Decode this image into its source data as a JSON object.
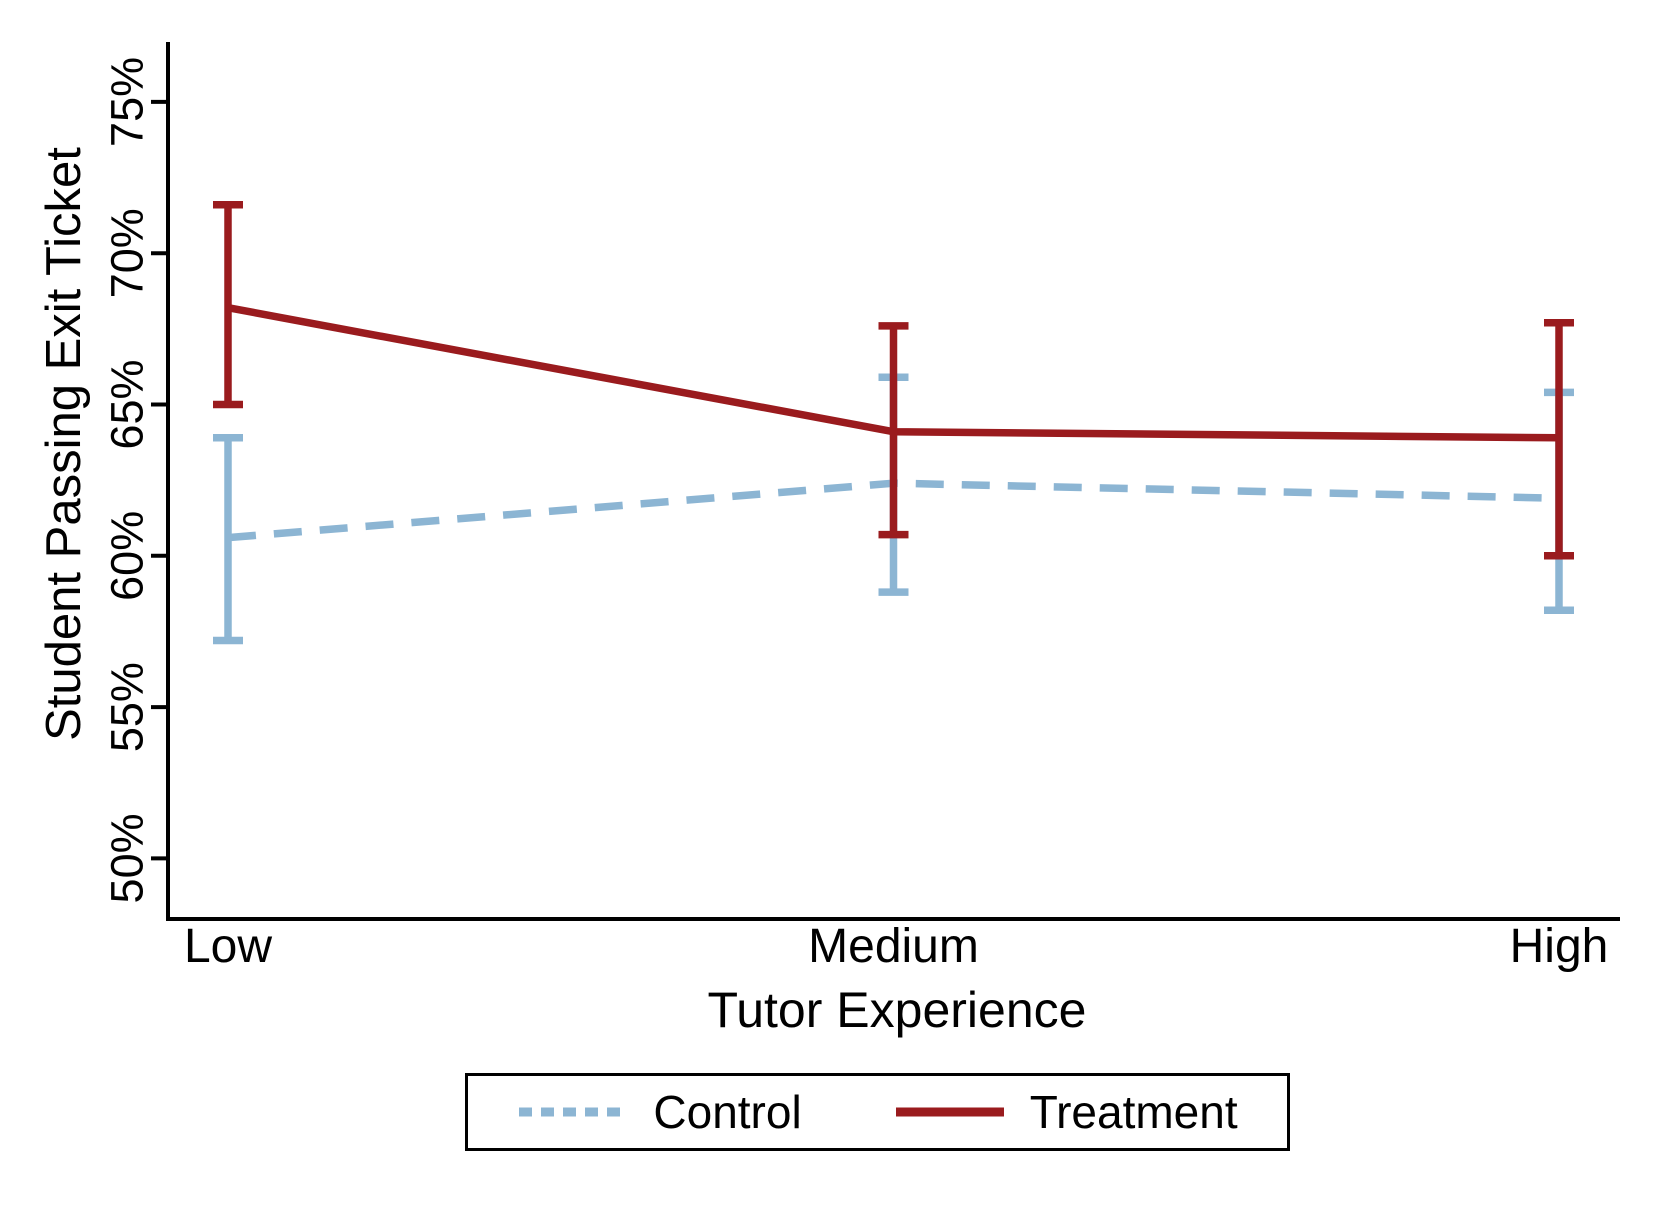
{
  "chart_data": {
    "type": "line",
    "title": "",
    "xlabel": "Tutor Experience",
    "ylabel": "Student Passing Exit Ticket",
    "categories": [
      "Low",
      "Medium",
      "High"
    ],
    "y_axis": {
      "unit": "percent",
      "range": [
        48,
        77
      ],
      "grid": false,
      "ticks": [
        {
          "value": 50,
          "label": "50%"
        },
        {
          "value": 55,
          "label": "55%"
        },
        {
          "value": 60,
          "label": "60%"
        },
        {
          "value": 65,
          "label": "65%"
        },
        {
          "value": 70,
          "label": "70%"
        },
        {
          "value": 75,
          "label": "75%"
        }
      ]
    },
    "series": [
      {
        "name": "Control",
        "type": "line-with-error-bars",
        "line_style": "dashed",
        "color": "#8cb5d3",
        "values": [
          60.6,
          62.4,
          61.9
        ],
        "ci_low": [
          57.2,
          58.8,
          58.2
        ],
        "ci_high": [
          63.9,
          65.9,
          65.4
        ]
      },
      {
        "name": "Treatment",
        "type": "line-with-error-bars",
        "line_style": "solid",
        "color": "#9a1b1e",
        "values": [
          68.2,
          64.1,
          63.9
        ],
        "ci_low": [
          65.0,
          60.7,
          60.0
        ],
        "ci_high": [
          71.6,
          67.6,
          67.7
        ]
      }
    ],
    "legend": {
      "position": "bottom",
      "entries": [
        "Control",
        "Treatment"
      ]
    }
  }
}
